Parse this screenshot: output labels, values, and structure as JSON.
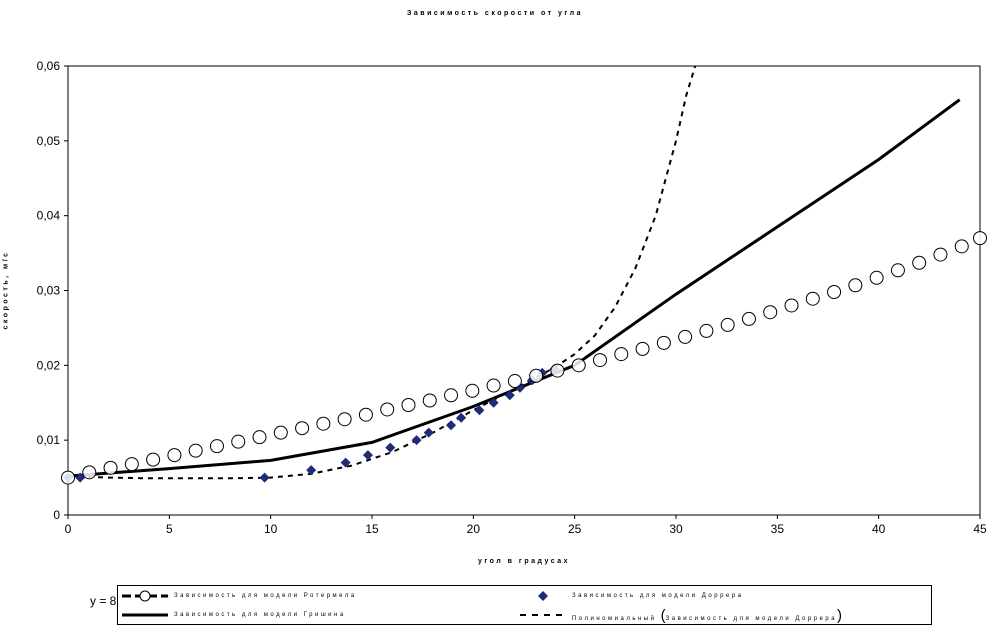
{
  "chart_data": {
    "type": "line",
    "title": "Зависимость скорости от угла",
    "xlabel": "угол в градусах",
    "ylabel": "скорость, м/с",
    "xlim": [
      0,
      45
    ],
    "ylim": [
      0,
      0.06
    ],
    "xticks": [
      0,
      5,
      10,
      15,
      20,
      25,
      30,
      35,
      40,
      45
    ],
    "xtick_labels": [
      "0",
      "5",
      "10",
      "15",
      "20",
      "25",
      "30",
      "35",
      "40",
      "45"
    ],
    "yticks": [
      0,
      0.01,
      0.02,
      0.03,
      0.04,
      0.05,
      0.06
    ],
    "ytick_labels": [
      "0",
      "0,01",
      "0,02",
      "0,03",
      "0,04",
      "0,05",
      "0,06"
    ],
    "grid": true,
    "legend_position": "bottom",
    "equation_text": "y = 8",
    "series": [
      {
        "name": "Зависимость для модели Ротермела",
        "style": "open-circle",
        "color": "#000000",
        "x": [
          0,
          1.05,
          2.1,
          3.15,
          4.2,
          5.25,
          6.3,
          7.35,
          8.4,
          9.45,
          10.5,
          11.55,
          12.6,
          13.65,
          14.7,
          15.75,
          16.8,
          17.85,
          18.9,
          19.95,
          21,
          22.05,
          23.1,
          24.15,
          25.2,
          26.25,
          27.3,
          28.35,
          29.4,
          30.45,
          31.5,
          32.55,
          33.6,
          34.65,
          35.7,
          36.75,
          37.8,
          38.85,
          39.9,
          40.95,
          42,
          43.05,
          44.1,
          45
        ],
        "y": [
          0.005,
          0.0057,
          0.0063,
          0.0068,
          0.0074,
          0.008,
          0.0086,
          0.0092,
          0.0098,
          0.0104,
          0.011,
          0.0116,
          0.0122,
          0.0128,
          0.0134,
          0.0141,
          0.0147,
          0.0153,
          0.016,
          0.0166,
          0.0173,
          0.0179,
          0.0186,
          0.0193,
          0.02,
          0.0207,
          0.0215,
          0.0222,
          0.023,
          0.0238,
          0.0246,
          0.0254,
          0.0262,
          0.0271,
          0.028,
          0.0289,
          0.0298,
          0.0307,
          0.0317,
          0.0327,
          0.0337,
          0.0348,
          0.0359,
          0.037
        ]
      },
      {
        "name": "Зависимость для модели Доррера",
        "style": "diamond",
        "color": "#1f2a7a",
        "x": [
          0,
          0.6,
          9.7,
          12,
          13.7,
          14.8,
          15.9,
          17.2,
          17.8,
          18.9,
          19.4,
          20.3,
          21,
          21.8,
          22.3,
          22.9,
          23.4,
          24
        ],
        "y": [
          0.005,
          0.005,
          0.005,
          0.006,
          0.007,
          0.008,
          0.009,
          0.01,
          0.011,
          0.012,
          0.013,
          0.014,
          0.015,
          0.016,
          0.017,
          0.018,
          0.019,
          0.0195
        ]
      },
      {
        "name": "Зависимость для модели Гришина",
        "style": "solid",
        "color": "#000000",
        "x": [
          0,
          5,
          10,
          15,
          20,
          25,
          30,
          35,
          40,
          44
        ],
        "y": [
          0.0052,
          0.0062,
          0.0073,
          0.0097,
          0.0145,
          0.02,
          0.0295,
          0.0385,
          0.0475,
          0.0555
        ]
      },
      {
        "name": "Полиномиальный (Зависимость для модели Доррера)",
        "legend_prefix": "Полиномиальный",
        "legend_inner": "Зависимость для модели Доррера",
        "style": "dashed",
        "color": "#000000",
        "x": [
          0,
          2,
          4,
          6,
          8,
          10,
          12,
          14,
          16,
          18,
          20,
          22,
          24,
          25,
          26,
          27,
          28,
          29,
          30,
          30.5,
          31
        ],
        "y": [
          0.0052,
          0.005,
          0.0049,
          0.0049,
          0.0049,
          0.005,
          0.0055,
          0.0066,
          0.0084,
          0.011,
          0.014,
          0.0168,
          0.0197,
          0.0215,
          0.024,
          0.0278,
          0.033,
          0.04,
          0.05,
          0.056,
          0.0605
        ]
      }
    ]
  }
}
